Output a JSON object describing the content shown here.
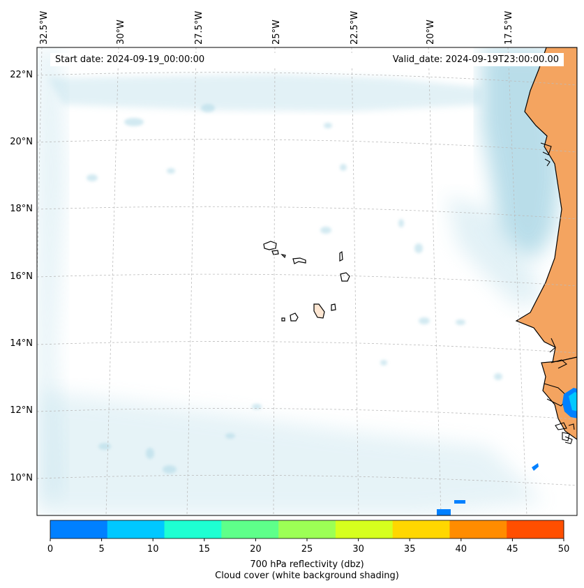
{
  "header": {
    "start_date": "Start date: 2024-09-19_00:00:00",
    "valid_date": "Valid_date: 2024-09-19T23:00:00.00"
  },
  "map": {
    "lon_labels": [
      "32.5°W",
      "30°W",
      "27.5°W",
      "25°W",
      "22.5°W",
      "20°W",
      "17.5°W"
    ],
    "lat_labels": [
      "22°N",
      "20°N",
      "18°N",
      "16°N",
      "14°N",
      "12°N",
      "10°N"
    ]
  },
  "colorbar": {
    "ticks": [
      "0",
      "5",
      "10",
      "15",
      "20",
      "25",
      "30",
      "35",
      "40",
      "45",
      "50"
    ],
    "colors": [
      "#0080ff",
      "#00c8ff",
      "#1effd2",
      "#5eff8a",
      "#9cff55",
      "#d6ff1e",
      "#ffd700",
      "#ff8c00",
      "#ff4f00"
    ],
    "label": "700 hPa reflectivity (dbz)",
    "sublabel": "Cloud cover (white background shading)"
  },
  "colors": {
    "cloud": "#add8e6",
    "land": "#f4a460",
    "coastline": "#000000"
  }
}
